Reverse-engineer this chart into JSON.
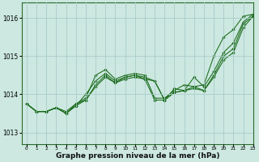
{
  "xlabel": "Graphe pression niveau de la mer (hPa)",
  "xlim": [
    -0.5,
    23
  ],
  "ylim": [
    1012.7,
    1016.4
  ],
  "yticks": [
    1013,
    1014,
    1015,
    1016
  ],
  "xticks": [
    0,
    1,
    2,
    3,
    4,
    5,
    6,
    7,
    8,
    9,
    10,
    11,
    12,
    13,
    14,
    15,
    16,
    17,
    18,
    19,
    20,
    21,
    22,
    23
  ],
  "bg_color": "#cce8e0",
  "grid_color": "#aacccc",
  "line_color": "#1a6b1a",
  "series": [
    [
      1013.75,
      1013.55,
      1013.55,
      1013.65,
      1013.55,
      1013.75,
      1013.9,
      1014.5,
      1014.65,
      1014.4,
      1014.5,
      1014.55,
      1014.5,
      1013.9,
      1013.9,
      1014.1,
      1014.25,
      1014.2,
      1014.25,
      1015.0,
      1015.5,
      1015.7,
      1016.05,
      1016.1
    ],
    [
      1013.75,
      1013.55,
      1013.55,
      1013.65,
      1013.5,
      1013.7,
      1014.0,
      1014.35,
      1014.55,
      1014.35,
      1014.45,
      1014.5,
      1014.45,
      1014.35,
      1013.85,
      1014.15,
      1014.1,
      1014.45,
      1014.2,
      1014.6,
      1015.1,
      1015.35,
      1015.9,
      1016.1
    ],
    [
      1013.75,
      1013.55,
      1013.55,
      1013.65,
      1013.5,
      1013.7,
      1013.85,
      1014.25,
      1014.5,
      1014.3,
      1014.45,
      1014.5,
      1014.4,
      1014.35,
      1013.85,
      1014.05,
      1014.1,
      1014.2,
      1014.1,
      1014.5,
      1015.0,
      1015.2,
      1015.85,
      1016.05
    ],
    [
      1013.75,
      1013.55,
      1013.55,
      1013.65,
      1013.5,
      1013.75,
      1013.85,
      1014.2,
      1014.45,
      1014.3,
      1014.4,
      1014.45,
      1014.4,
      1013.85,
      1013.85,
      1014.05,
      1014.1,
      1014.15,
      1014.1,
      1014.45,
      1014.9,
      1015.1,
      1015.75,
      1016.05
    ]
  ],
  "xlabel_fontsize": 6.5,
  "xlabel_fontweight": "bold",
  "xtick_fontsize": 4.2,
  "ytick_fontsize": 5.5,
  "marker": "D",
  "markersize": 1.8,
  "linewidth": 0.75
}
